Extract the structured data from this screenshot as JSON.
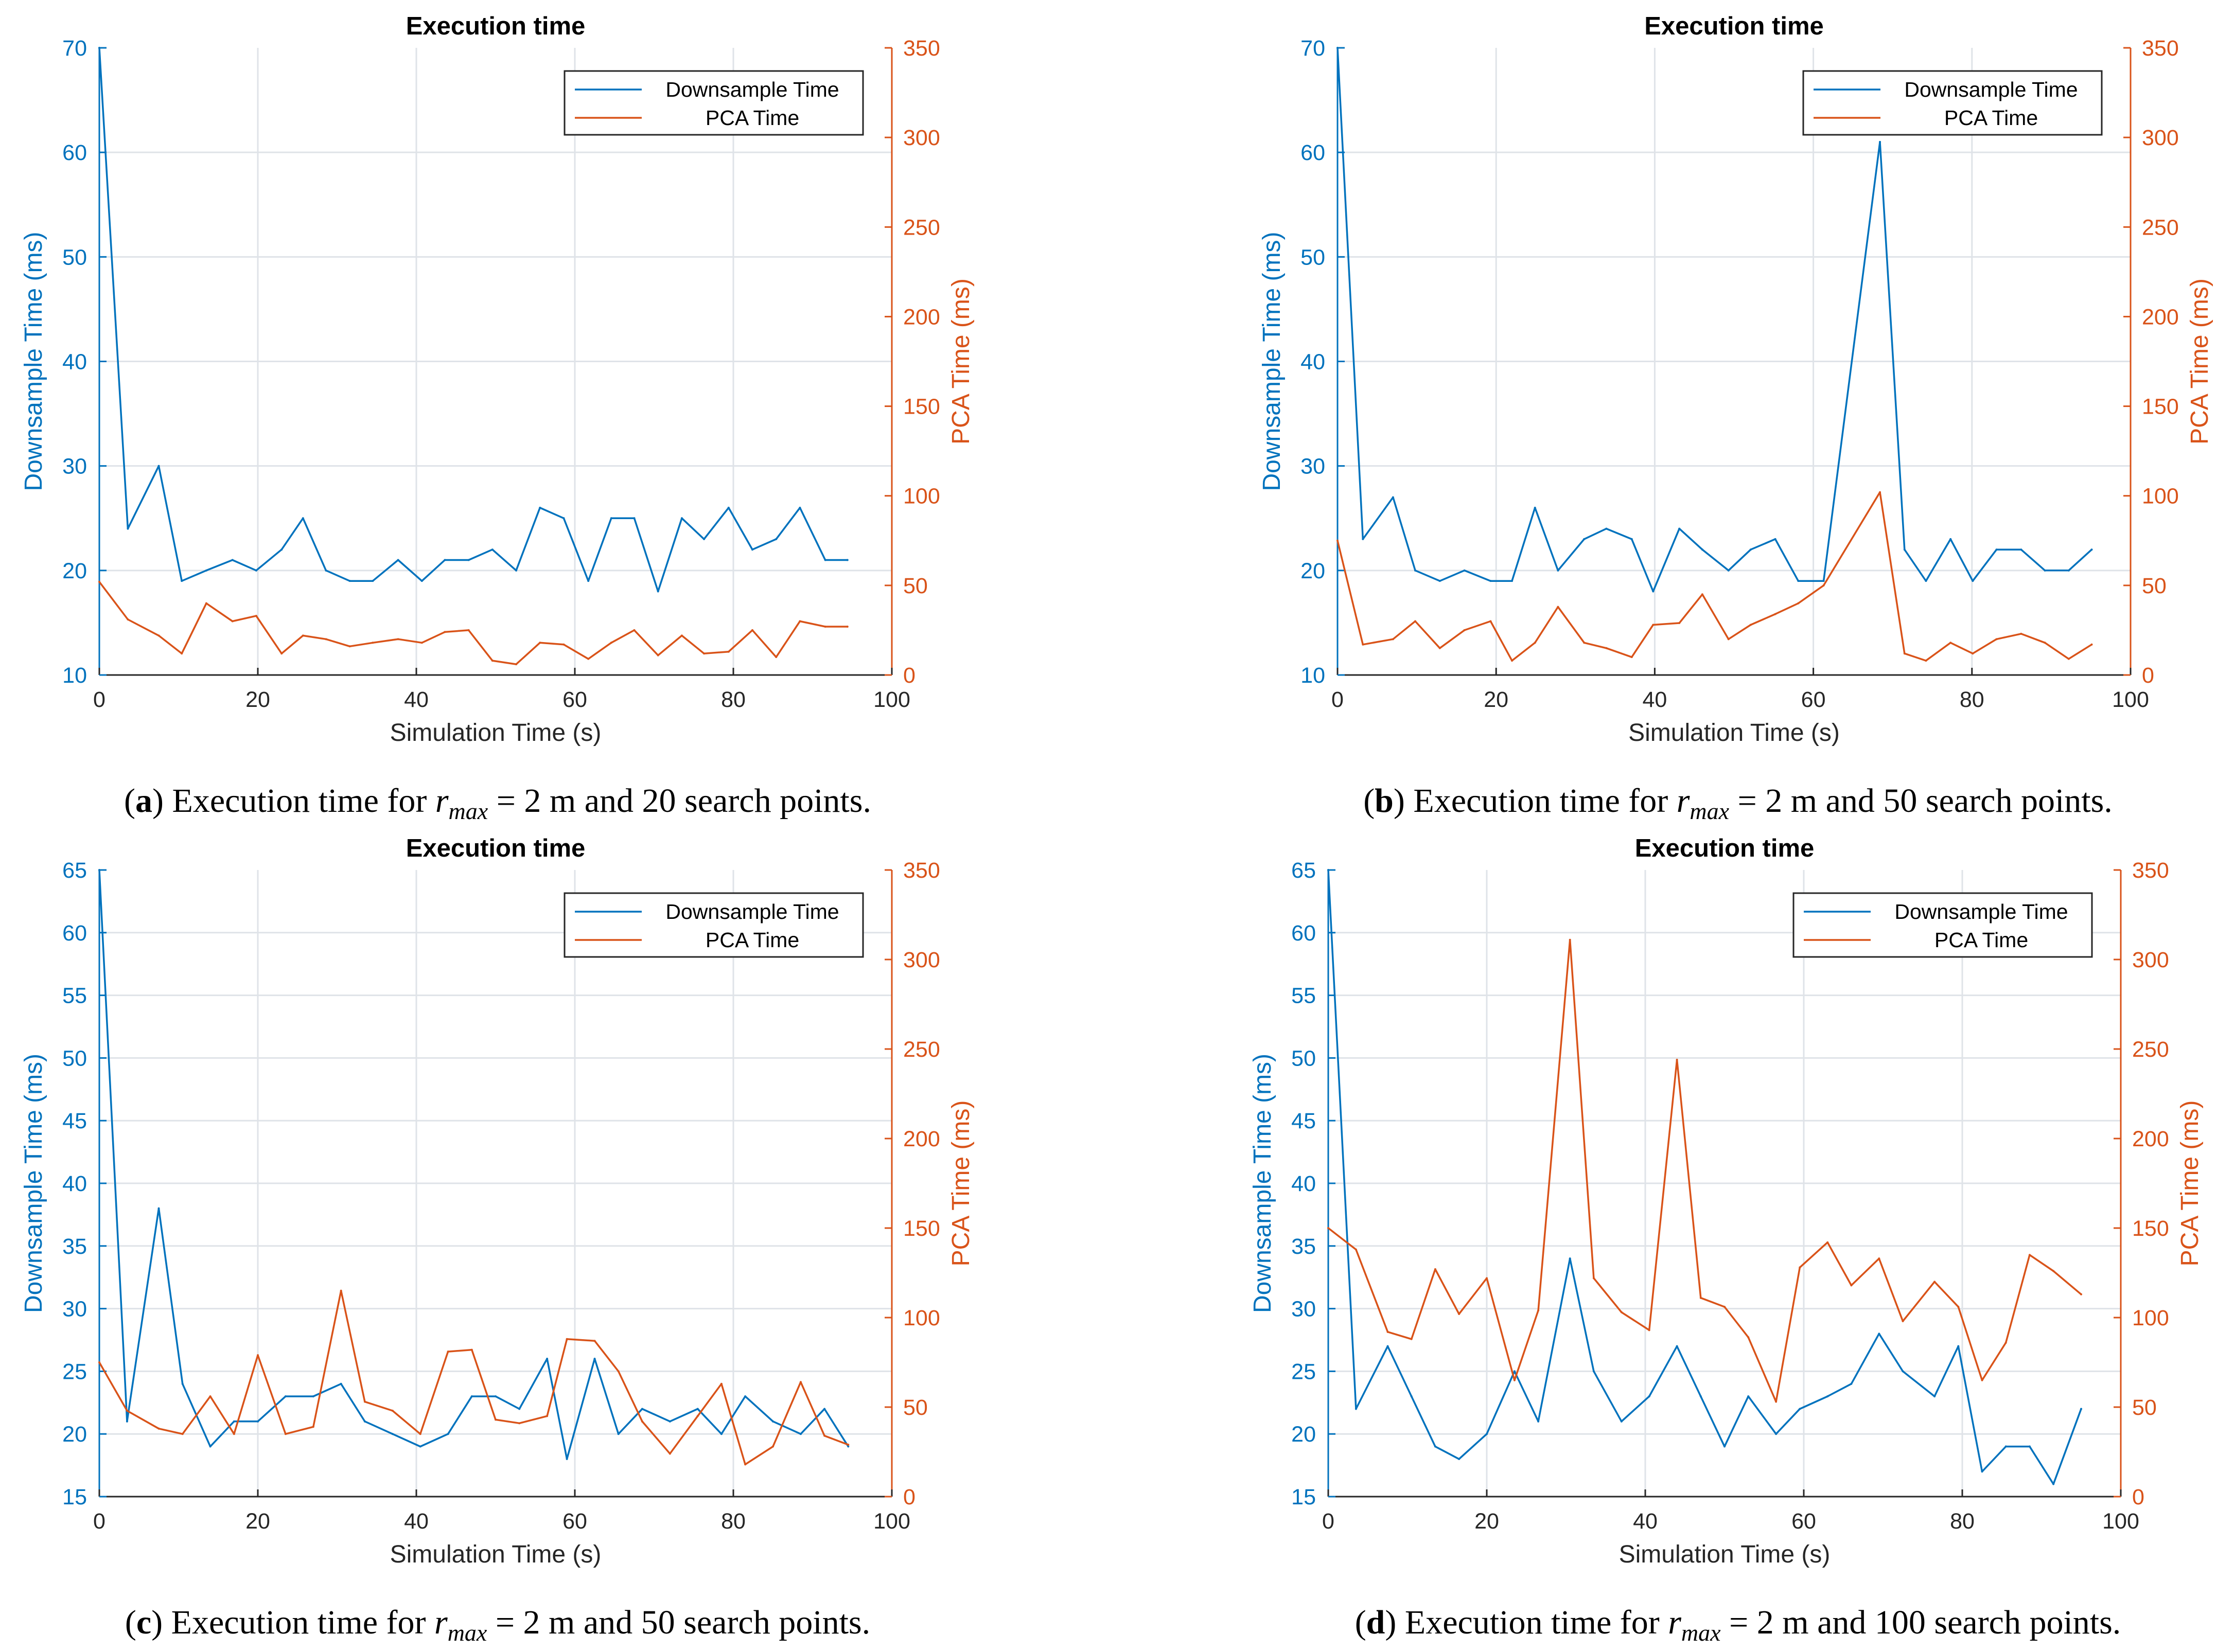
{
  "colors": {
    "downsample": "#0072BD",
    "pca": "#D95319",
    "grid": "#dfe3e8",
    "axis": "#262626",
    "text": "#000000"
  },
  "chart_data": [
    {
      "type": "line",
      "title": "Execution time",
      "xlabel": "Simulation Time (s)",
      "ylabel_left": "Downsample Time (ms)",
      "ylabel_right": "PCA Time (ms)",
      "xlim": [
        0,
        100
      ],
      "ylim_left": [
        10,
        70
      ],
      "ylim_right": [
        0,
        350
      ],
      "xticks": [
        "0",
        "20",
        "40",
        "60",
        "80",
        "100"
      ],
      "yticks_left": [
        "10",
        "20",
        "30",
        "40",
        "50",
        "60",
        "70"
      ],
      "yticks_right": [
        "0",
        "50",
        "100",
        "150",
        "200",
        "250",
        "300",
        "350"
      ],
      "legend": [
        "Downsample Time",
        "PCA Time"
      ],
      "legend_position": "top-right",
      "grid": true,
      "series": [
        {
          "name": "Downsample Time",
          "axis": "left",
          "x": [
            0,
            3.6,
            7.5,
            10.4,
            13.5,
            16.8,
            19.8,
            23,
            25.7,
            28.6,
            31.6,
            34.5,
            37.7,
            40.7,
            43.6,
            46.6,
            49.6,
            52.6,
            55.6,
            58.6,
            61.7,
            64.6,
            67.5,
            70.5,
            73.5,
            76.3,
            79.4,
            82.4,
            85.4,
            88.4,
            91.6,
            94.4
          ],
          "y": [
            70,
            24,
            30,
            19,
            20,
            21,
            20,
            22,
            25,
            20,
            19,
            19,
            21,
            19,
            21,
            21,
            22,
            20,
            26,
            25,
            19,
            25,
            25,
            18,
            25,
            23,
            26,
            22,
            23,
            26,
            21,
            21
          ]
        },
        {
          "name": "PCA Time",
          "axis": "right",
          "x": [
            0,
            3.6,
            7.5,
            10.4,
            13.5,
            16.8,
            19.8,
            23,
            25.7,
            28.6,
            31.6,
            34.5,
            37.7,
            40.7,
            43.6,
            46.6,
            49.6,
            52.6,
            55.6,
            58.6,
            61.7,
            64.6,
            67.5,
            70.5,
            73.5,
            76.3,
            79.4,
            82.4,
            85.4,
            88.4,
            91.6,
            94.4
          ],
          "y": [
            52,
            31,
            22,
            12,
            40,
            30,
            33,
            12,
            22,
            20,
            16,
            18,
            20,
            18,
            24,
            25,
            8,
            6,
            18,
            17,
            9,
            18,
            25,
            11,
            22,
            12,
            13,
            25,
            10,
            30,
            27,
            27
          ]
        }
      ],
      "caption_label": "a",
      "caption_prefix": "Execution time for ",
      "caption_r": "r",
      "caption_sub": "max",
      "caption_rest": " = 2 m and 20 search points."
    },
    {
      "type": "line",
      "title": "Execution time",
      "xlabel": "Simulation Time (s)",
      "ylabel_left": "Downsample Time (ms)",
      "ylabel_right": "PCA Time (ms)",
      "xlim": [
        0,
        100
      ],
      "ylim_left": [
        10,
        70
      ],
      "ylim_right": [
        0,
        350
      ],
      "xticks": [
        "0",
        "20",
        "40",
        "60",
        "80",
        "100"
      ],
      "yticks_left": [
        "10",
        "20",
        "30",
        "40",
        "50",
        "60",
        "70"
      ],
      "yticks_right": [
        "0",
        "50",
        "100",
        "150",
        "200",
        "250",
        "300",
        "350"
      ],
      "legend": [
        "Downsample Time",
        "PCA Time"
      ],
      "legend_position": "top-right",
      "grid": true,
      "series": [
        {
          "name": "Downsample Time",
          "axis": "left",
          "x": [
            0,
            3.2,
            7,
            9.8,
            12.9,
            16,
            19.3,
            22,
            24.9,
            27.8,
            31.1,
            33.9,
            37.1,
            39.8,
            43.1,
            46,
            49.3,
            52.1,
            55.2,
            58.1,
            61.3,
            68.4,
            71.5,
            74.2,
            77.3,
            80.1,
            83.1,
            86.2,
            89.2,
            92.2,
            95.1
          ],
          "y": [
            70,
            23,
            27,
            20,
            19,
            20,
            19,
            19,
            26,
            20,
            23,
            24,
            23,
            18,
            24,
            22,
            20,
            22,
            23,
            19,
            19,
            61,
            22,
            19,
            23,
            19,
            22,
            22,
            20,
            20,
            22
          ]
        },
        {
          "name": "PCA Time",
          "axis": "right",
          "x": [
            0,
            3.2,
            7,
            9.8,
            12.9,
            16,
            19.3,
            22,
            24.9,
            27.8,
            31.1,
            33.9,
            37.1,
            39.8,
            43.1,
            46,
            49.3,
            52.1,
            55.2,
            58.1,
            61.3,
            68.4,
            71.5,
            74.2,
            77.3,
            80.1,
            83.1,
            86.2,
            89.2,
            92.2,
            95.1
          ],
          "y": [
            75,
            17,
            20,
            30,
            15,
            25,
            30,
            8,
            18,
            38,
            18,
            15,
            10,
            28,
            29,
            45,
            20,
            28,
            34,
            40,
            50,
            102,
            12,
            8,
            18,
            12,
            20,
            23,
            18,
            9,
            17
          ]
        }
      ],
      "caption_label": "b",
      "caption_prefix": "Execution time for ",
      "caption_r": "r",
      "caption_sub": "max",
      "caption_rest": " = 2 m and 50 search points."
    },
    {
      "type": "line",
      "title": "Execution time",
      "xlabel": "Simulation Time (s)",
      "ylabel_left": "Downsample Time (ms)",
      "ylabel_right": "PCA Time (ms)",
      "xlim": [
        0,
        100
      ],
      "ylim_left": [
        15,
        65
      ],
      "ylim_right": [
        0,
        350
      ],
      "xticks": [
        "0",
        "20",
        "40",
        "60",
        "80",
        "100"
      ],
      "yticks_left": [
        "15",
        "20",
        "25",
        "30",
        "35",
        "40",
        "45",
        "50",
        "55",
        "60",
        "65"
      ],
      "yticks_right": [
        "0",
        "50",
        "100",
        "150",
        "200",
        "250",
        "300",
        "350"
      ],
      "legend": [
        "Downsample Time",
        "PCA Time"
      ],
      "legend_position": "top-right",
      "grid": true,
      "series": [
        {
          "name": "Downsample Time",
          "axis": "left",
          "x": [
            0,
            3.5,
            7.5,
            10.5,
            14,
            17,
            20,
            23.5,
            27,
            30.5,
            33.5,
            37,
            40.5,
            44,
            47,
            50,
            53,
            56.5,
            59,
            62.5,
            65.5,
            68.5,
            72,
            75.5,
            78.5,
            81.5,
            85,
            88.5,
            91.5,
            94.5
          ],
          "y": [
            65,
            21,
            38,
            24,
            19,
            21,
            21,
            23,
            23,
            24,
            21,
            20,
            19,
            20,
            23,
            23,
            22,
            26,
            18,
            26,
            20,
            22,
            21,
            22,
            20,
            23,
            21,
            20,
            22,
            19
          ]
        },
        {
          "name": "PCA Time",
          "axis": "right",
          "x": [
            0,
            3.5,
            7.5,
            10.5,
            14,
            17,
            20,
            23.5,
            27,
            30.5,
            33.5,
            37,
            40.5,
            44,
            47,
            50,
            53,
            56.5,
            59,
            62.5,
            65.5,
            68.5,
            72,
            75.5,
            78.5,
            81.5,
            85,
            88.5,
            91.5,
            94.5
          ],
          "y": [
            75,
            48,
            38,
            35,
            56,
            35,
            79,
            35,
            39,
            115,
            53,
            48,
            35,
            81,
            82,
            43,
            41,
            45,
            88,
            87,
            70,
            42,
            24,
            45,
            63,
            18,
            28,
            64,
            34,
            29
          ]
        }
      ],
      "caption_label": "c",
      "caption_prefix": "Execution time for ",
      "caption_r": "r",
      "caption_sub": "max",
      "caption_rest": " = 2 m and 50 search points."
    },
    {
      "type": "line",
      "title": "Execution time",
      "xlabel": "Simulation Time (s)",
      "ylabel_left": "Downsample Time (ms)",
      "ylabel_right": "PCA Time (ms)",
      "xlim": [
        0,
        100
      ],
      "ylim_left": [
        15,
        65
      ],
      "ylim_right": [
        0,
        350
      ],
      "xticks": [
        "0",
        "20",
        "40",
        "60",
        "80",
        "100"
      ],
      "yticks_left": [
        "15",
        "20",
        "25",
        "30",
        "35",
        "40",
        "45",
        "50",
        "55",
        "60",
        "65"
      ],
      "yticks_right": [
        "0",
        "50",
        "100",
        "150",
        "200",
        "250",
        "300",
        "350"
      ],
      "legend": [
        "Downsample Time",
        "PCA Time"
      ],
      "legend_position": "top-right",
      "grid": true,
      "series": [
        {
          "name": "Downsample Time",
          "axis": "left",
          "x": [
            0,
            3.5,
            7.5,
            10.5,
            13.5,
            16.5,
            20,
            23.5,
            26.5,
            30.5,
            33.5,
            37,
            40.5,
            44,
            47,
            50,
            53,
            56.5,
            59.5,
            63,
            66,
            69.5,
            72.5,
            76.5,
            79.5,
            82.5,
            85.5,
            88.5,
            91.5,
            95
          ],
          "y": [
            65,
            22,
            27,
            23,
            19,
            18,
            20,
            25,
            21,
            34,
            25,
            21,
            23,
            27,
            23,
            19,
            23,
            20,
            22,
            23,
            24,
            28,
            25,
            23,
            27,
            17,
            19,
            19,
            16,
            22
          ]
        },
        {
          "name": "PCA Time",
          "axis": "right",
          "x": [
            0,
            3.5,
            7.5,
            10.5,
            13.5,
            16.5,
            20,
            23.5,
            26.5,
            30.5,
            33.5,
            37,
            40.5,
            44,
            47,
            50,
            53,
            56.5,
            59.5,
            63,
            66,
            69.5,
            72.5,
            76.5,
            79.5,
            82.5,
            85.5,
            88.5,
            91.5,
            95
          ],
          "y": [
            150,
            138,
            92,
            88,
            127,
            102,
            122,
            65,
            104,
            311,
            122,
            103,
            93,
            244,
            111,
            106,
            89,
            53,
            128,
            142,
            118,
            133,
            98,
            120,
            106,
            65,
            86,
            135,
            126,
            113
          ]
        }
      ],
      "caption_label": "d",
      "caption_prefix": "Execution time for ",
      "caption_r": "r",
      "caption_sub": "max",
      "caption_rest": " = 2 m and 100 search points."
    }
  ]
}
